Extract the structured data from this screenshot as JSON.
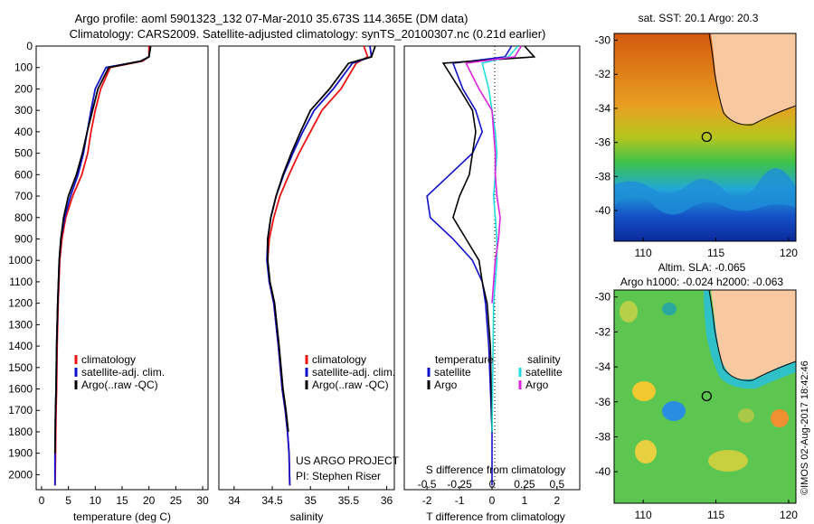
{
  "header": {
    "line1": "Argo profile: aoml 5901323_132 07-Mar-2010 35.673S 114.365E (DM data)",
    "line2": "Climatology: CARS2009. Satellite-adjusted climatology: synTS_20100307.nc (0.21d earlier)"
  },
  "footer_stamp": "©IMOS 02-Aug-2017 18:42:46",
  "colors": {
    "climatology": "#ee1111",
    "satellite": "#1111cc",
    "argo": "#000000",
    "sal_satellite": "#22dddd",
    "sal_argo": "#dd22dd"
  },
  "chart_data": [
    {
      "type": "line",
      "panel": "temperature",
      "xlabel": "temperature (deg C)",
      "ylabel": "",
      "xlim": [
        -1,
        31
      ],
      "ylim": [
        2070,
        0
      ],
      "xticks": [
        "0",
        "5",
        "10",
        "15",
        "20",
        "25",
        "30"
      ],
      "yticks": [
        "0",
        "100",
        "200",
        "300",
        "400",
        "500",
        "600",
        "700",
        "800",
        "900",
        "1000",
        "1100",
        "1200",
        "1300",
        "1400",
        "1500",
        "1600",
        "1700",
        "1800",
        "1900",
        "2000"
      ],
      "legend": [
        "climatology",
        "satellite-adj. clim.",
        "Argo(..raw -QC)"
      ],
      "series": [
        {
          "name": "climatology",
          "x": [
            20.0,
            20.0,
            18.8,
            12.8,
            11.0,
            10.0,
            9.2,
            8.6,
            7.5,
            5.8,
            4.5,
            3.8,
            3.4,
            3.1,
            2.9,
            2.8,
            2.7,
            2.65,
            2.6,
            2.55,
            2.5
          ],
          "y": [
            0,
            50,
            70,
            100,
            200,
            300,
            400,
            500,
            600,
            700,
            800,
            900,
            1000,
            1200,
            1400,
            1600,
            1700,
            1800,
            1900,
            2000,
            2050
          ]
        },
        {
          "name": "satellite-adj. clim.",
          "x": [
            20.3,
            20.0,
            18.5,
            12.0,
            10.0,
            9.2,
            8.5,
            7.8,
            6.8,
            5.4,
            4.3,
            3.6,
            3.3,
            3.0,
            2.8,
            2.7,
            2.6,
            2.55,
            2.5,
            2.5,
            2.5
          ],
          "y": [
            0,
            50,
            70,
            100,
            200,
            300,
            400,
            500,
            600,
            700,
            800,
            900,
            1000,
            1200,
            1400,
            1600,
            1700,
            1800,
            1900,
            2000,
            2050
          ]
        },
        {
          "name": "Argo(..raw -QC)",
          "x": [
            20.3,
            20.0,
            18.5,
            12.5,
            10.5,
            9.5,
            8.5,
            7.6,
            6.5,
            5.0,
            4.1,
            3.6,
            3.3,
            3.0,
            2.8,
            2.7,
            2.6,
            2.55,
            2.5
          ],
          "y": [
            0,
            50,
            70,
            100,
            200,
            300,
            400,
            500,
            600,
            700,
            800,
            900,
            1000,
            1200,
            1400,
            1600,
            1700,
            1800,
            1900
          ]
        }
      ]
    },
    {
      "type": "line",
      "panel": "salinity",
      "xlabel": "salinity",
      "xlim": [
        33.8,
        36.1
      ],
      "ylim": [
        2070,
        0
      ],
      "xticks": [
        "34",
        "34.5",
        "35",
        "35.5",
        "36"
      ],
      "legend": [
        "climatology",
        "satellite-adj. clim.",
        "Argo(..raw -QC)"
      ],
      "annotation": [
        "US ARGO PROJECT",
        "PI: Stephen Riser"
      ],
      "series": [
        {
          "name": "climatology",
          "x": [
            35.7,
            35.75,
            35.6,
            35.4,
            35.15,
            35.0,
            34.85,
            34.72,
            34.6,
            34.52,
            34.46,
            34.44,
            34.46,
            34.52,
            34.58,
            34.63,
            34.67,
            34.7,
            34.72,
            34.73
          ],
          "y": [
            0,
            50,
            80,
            200,
            300,
            400,
            500,
            600,
            700,
            800,
            900,
            1000,
            1100,
            1200,
            1400,
            1600,
            1700,
            1800,
            1900,
            2050
          ]
        },
        {
          "name": "satellite-adj. clim.",
          "x": [
            35.78,
            35.8,
            35.55,
            35.3,
            35.05,
            34.9,
            34.77,
            34.65,
            34.55,
            34.48,
            34.44,
            34.43,
            34.46,
            34.52,
            34.58,
            34.63,
            34.67,
            34.7,
            34.72,
            34.73
          ],
          "y": [
            0,
            50,
            80,
            200,
            300,
            400,
            500,
            600,
            700,
            800,
            900,
            1000,
            1100,
            1200,
            1400,
            1600,
            1700,
            1800,
            1900,
            2050
          ]
        },
        {
          "name": "Argo(..raw -QC)",
          "x": [
            35.85,
            35.8,
            35.5,
            35.25,
            35.0,
            34.87,
            34.75,
            34.64,
            34.55,
            34.48,
            34.44,
            34.44,
            34.47,
            34.53,
            34.59,
            34.64,
            34.68,
            34.71
          ],
          "y": [
            0,
            50,
            80,
            200,
            300,
            400,
            500,
            600,
            700,
            800,
            900,
            1000,
            1100,
            1200,
            1400,
            1600,
            1700,
            1800
          ]
        }
      ]
    },
    {
      "type": "line",
      "panel": "difference",
      "xlabel": "T difference from climatology",
      "xlabel2": "S difference from climatology",
      "xlim": [
        -2.7,
        2.7
      ],
      "ylim": [
        2070,
        0
      ],
      "xticks_T": [
        "-2",
        "-1",
        "0",
        "1",
        "2"
      ],
      "xticks_S": [
        "-0.5",
        "-0.25",
        "0",
        "0.25",
        "0.5"
      ],
      "legend_left_title": "temperature",
      "legend_right_title": "salinity",
      "legend_left": [
        "satellite",
        "Argo"
      ],
      "legend_right": [
        "satellite",
        "Argo"
      ],
      "series": [
        {
          "name": "satellite",
          "x": [
            0.6,
            0.4,
            -1.2,
            -0.9,
            -0.5,
            -0.3,
            -0.6,
            -1.3,
            -2.0,
            -1.9,
            -1.2,
            -0.6,
            -0.3,
            -0.2,
            -0.1,
            0.0,
            0.0
          ],
          "y": [
            0,
            50,
            80,
            200,
            300,
            400,
            500,
            600,
            700,
            800,
            900,
            1000,
            1100,
            1200,
            1400,
            1800,
            2050
          ]
        },
        {
          "name": "Argo",
          "x": [
            1.0,
            1.3,
            -1.5,
            -1.0,
            -0.6,
            -0.5,
            -0.6,
            -0.7,
            -1.0,
            -1.2,
            -0.8,
            -0.4,
            -0.3,
            -0.15,
            -0.05,
            0.0
          ],
          "y": [
            0,
            50,
            80,
            200,
            300,
            400,
            500,
            600,
            700,
            800,
            900,
            1000,
            1100,
            1200,
            1400,
            1800
          ]
        },
        {
          "name": "satellite",
          "x": [
            0.8,
            0.5,
            -0.3,
            -0.1,
            0.0,
            0.1,
            0.15,
            0.1,
            0.05,
            0.1,
            0.15,
            0.15,
            0.1,
            0.05,
            0.0
          ],
          "y": [
            0,
            50,
            80,
            200,
            300,
            400,
            500,
            600,
            700,
            800,
            900,
            1000,
            1100,
            1200,
            1800
          ]
        },
        {
          "name": "Argo",
          "x": [
            0.9,
            0.7,
            -0.8,
            -0.4,
            0.0,
            0.05,
            0.1,
            0.1,
            0.15,
            0.25,
            0.2,
            0.1,
            0.05,
            0.0
          ],
          "y": [
            0,
            50,
            80,
            200,
            300,
            400,
            500,
            600,
            700,
            800,
            900,
            1000,
            1100,
            1200
          ]
        }
      ]
    },
    {
      "type": "heatmap",
      "panel": "sst-map",
      "title": "sat. SST: 20.1  Argo: 20.3",
      "xticks": [
        "110",
        "115",
        "120"
      ],
      "yticks": [
        "-30",
        "-32",
        "-34",
        "-36",
        "-38",
        "-40"
      ],
      "xlim": [
        108,
        120.5
      ],
      "ylim": [
        -41.8,
        -29.6
      ],
      "marker": {
        "lon": 114.365,
        "lat": -35.673
      }
    },
    {
      "type": "heatmap",
      "panel": "sla-map",
      "title": "Altim. SLA: -0.065",
      "subtitle": "Argo h1000: -0.024 h2000: -0.063",
      "xticks": [
        "110",
        "115",
        "120"
      ],
      "yticks": [
        "-30",
        "-32",
        "-34",
        "-36",
        "-38",
        "-40"
      ],
      "xlim": [
        108,
        120.5
      ],
      "ylim": [
        -41.8,
        -29.6
      ],
      "marker": {
        "lon": 114.365,
        "lat": -35.673
      }
    }
  ]
}
